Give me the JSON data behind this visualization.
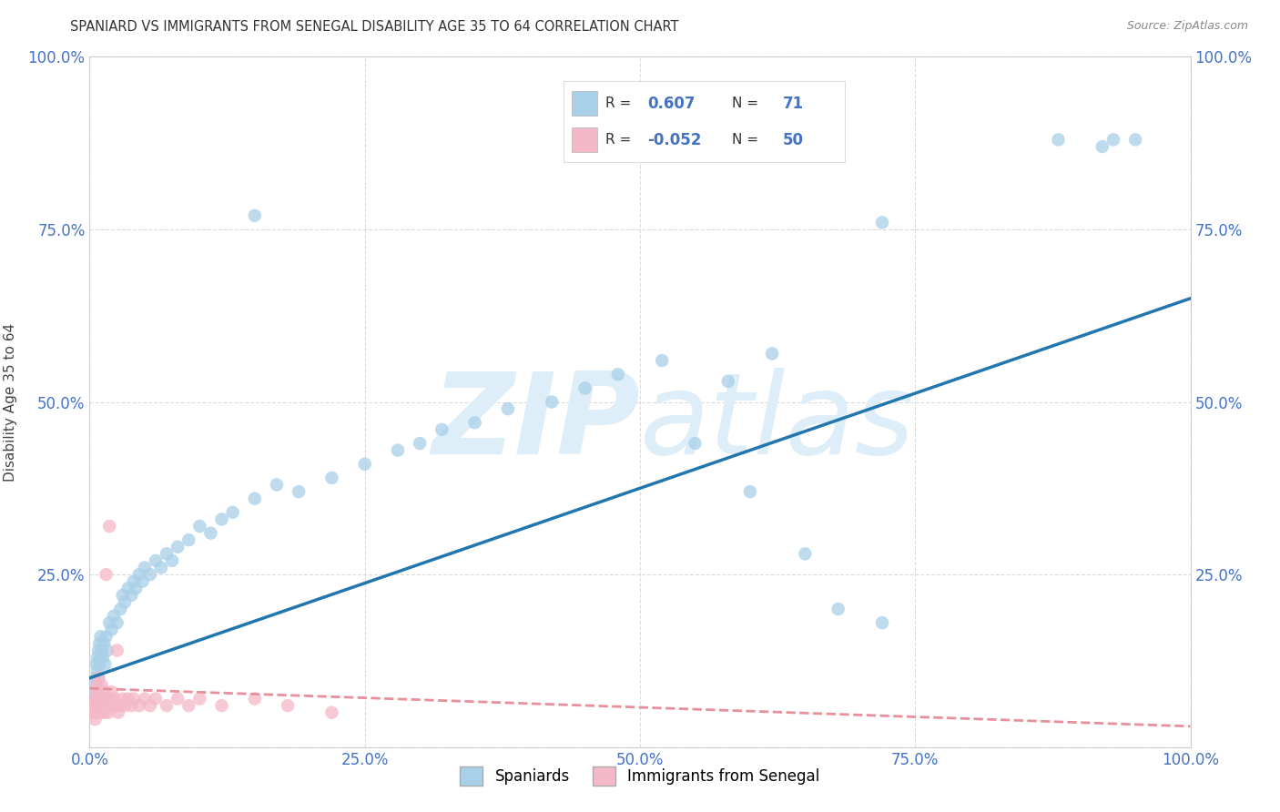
{
  "title": "SPANIARD VS IMMIGRANTS FROM SENEGAL DISABILITY AGE 35 TO 64 CORRELATION CHART",
  "source": "Source: ZipAtlas.com",
  "ylabel": "Disability Age 35 to 64",
  "xlim": [
    0.0,
    1.0
  ],
  "ylim": [
    0.0,
    1.0
  ],
  "xticks": [
    0.0,
    0.25,
    0.5,
    0.75,
    1.0
  ],
  "yticks": [
    0.0,
    0.25,
    0.5,
    0.75,
    1.0
  ],
  "xticklabels": [
    "0.0%",
    "25.0%",
    "50.0%",
    "75.0%",
    "100.0%"
  ],
  "yticklabels": [
    "",
    "25.0%",
    "50.0%",
    "75.0%",
    "100.0%"
  ],
  "spaniards_R": 0.607,
  "spaniards_N": 71,
  "senegal_R": -0.052,
  "senegal_N": 50,
  "blue_color": "#a8d0e8",
  "pink_color": "#f4b8c8",
  "blue_line_color": "#2176ae",
  "pink_line_color": "#e8909a",
  "background_color": "#ffffff",
  "grid_color": "#cccccc",
  "title_color": "#333333",
  "watermark_color": "#ddeef8",
  "legend_R1": "0.607",
  "legend_N1": "71",
  "legend_R2": "-0.052",
  "legend_N2": "50",
  "sp_x": [
    0.003,
    0.004,
    0.005,
    0.006,
    0.006,
    0.007,
    0.007,
    0.008,
    0.008,
    0.009,
    0.009,
    0.01,
    0.01,
    0.011,
    0.012,
    0.013,
    0.014,
    0.015,
    0.016,
    0.018,
    0.02,
    0.022,
    0.025,
    0.028,
    0.03,
    0.032,
    0.035,
    0.038,
    0.04,
    0.042,
    0.045,
    0.048,
    0.05,
    0.055,
    0.06,
    0.065,
    0.07,
    0.075,
    0.08,
    0.09,
    0.1,
    0.11,
    0.12,
    0.13,
    0.15,
    0.17,
    0.19,
    0.22,
    0.25,
    0.28,
    0.3,
    0.32,
    0.35,
    0.38,
    0.42,
    0.45,
    0.48,
    0.52,
    0.55,
    0.6,
    0.65,
    0.68,
    0.72,
    0.15,
    0.58,
    0.62,
    0.92,
    0.95,
    0.72,
    0.88,
    0.93
  ],
  "sp_y": [
    0.07,
    0.08,
    0.09,
    0.1,
    0.12,
    0.11,
    0.13,
    0.1,
    0.14,
    0.12,
    0.15,
    0.13,
    0.16,
    0.14,
    0.13,
    0.15,
    0.12,
    0.16,
    0.14,
    0.18,
    0.17,
    0.19,
    0.18,
    0.2,
    0.22,
    0.21,
    0.23,
    0.22,
    0.24,
    0.23,
    0.25,
    0.24,
    0.26,
    0.25,
    0.27,
    0.26,
    0.28,
    0.27,
    0.29,
    0.3,
    0.32,
    0.31,
    0.33,
    0.34,
    0.36,
    0.38,
    0.37,
    0.39,
    0.41,
    0.43,
    0.44,
    0.46,
    0.47,
    0.49,
    0.5,
    0.52,
    0.54,
    0.56,
    0.44,
    0.37,
    0.28,
    0.2,
    0.18,
    0.77,
    0.53,
    0.57,
    0.87,
    0.88,
    0.76,
    0.88,
    0.88
  ],
  "sn_x": [
    0.003,
    0.004,
    0.005,
    0.005,
    0.006,
    0.006,
    0.007,
    0.007,
    0.008,
    0.008,
    0.009,
    0.009,
    0.01,
    0.01,
    0.011,
    0.011,
    0.012,
    0.013,
    0.013,
    0.014,
    0.015,
    0.016,
    0.017,
    0.018,
    0.019,
    0.02,
    0.022,
    0.024,
    0.026,
    0.028,
    0.03,
    0.032,
    0.035,
    0.038,
    0.04,
    0.045,
    0.05,
    0.055,
    0.06,
    0.07,
    0.08,
    0.09,
    0.1,
    0.12,
    0.15,
    0.18,
    0.22,
    0.015,
    0.018,
    0.025
  ],
  "sn_y": [
    0.05,
    0.06,
    0.04,
    0.07,
    0.05,
    0.08,
    0.06,
    0.09,
    0.07,
    0.1,
    0.06,
    0.08,
    0.05,
    0.07,
    0.06,
    0.09,
    0.07,
    0.08,
    0.05,
    0.06,
    0.07,
    0.06,
    0.05,
    0.07,
    0.06,
    0.08,
    0.07,
    0.06,
    0.05,
    0.06,
    0.07,
    0.06,
    0.07,
    0.06,
    0.07,
    0.06,
    0.07,
    0.06,
    0.07,
    0.06,
    0.07,
    0.06,
    0.07,
    0.06,
    0.07,
    0.06,
    0.05,
    0.25,
    0.32,
    0.14
  ]
}
